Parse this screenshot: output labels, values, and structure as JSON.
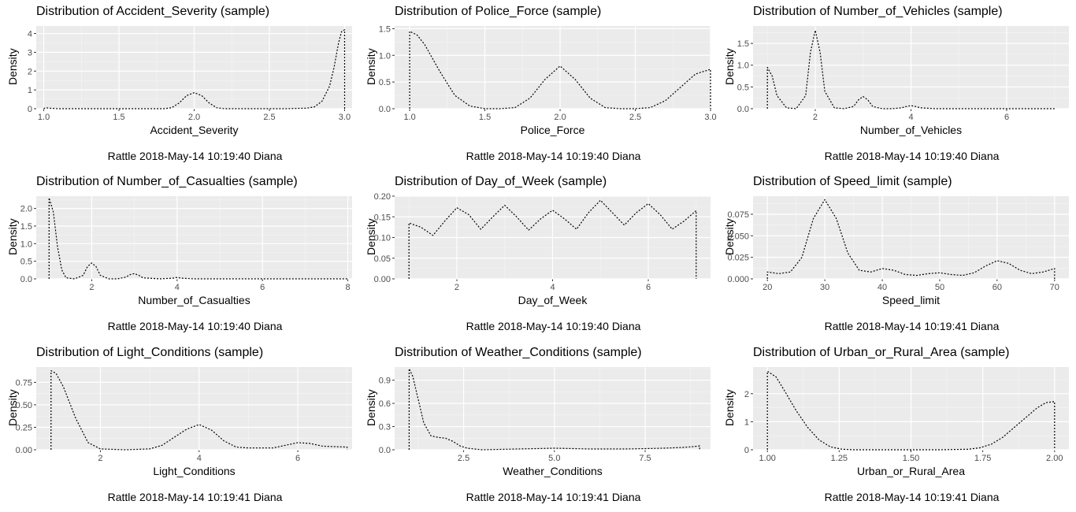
{
  "chart_data": [
    {
      "type": "line",
      "title": "Distribution of Accident_Severity (sample)",
      "xlabel": "Accident_Severity",
      "ylabel": "Density",
      "footer": "Rattle 2018-May-14 10:19:40 Diana",
      "xlim": [
        0.95,
        3.05
      ],
      "ylim": [
        0,
        4.4
      ],
      "xticks": [
        1.0,
        1.5,
        2.0,
        2.5,
        3.0
      ],
      "xtick_labels": [
        "1.0",
        "1.5",
        "2.0",
        "2.5",
        "3.0"
      ],
      "yticks": [
        0,
        1,
        2,
        3,
        4
      ],
      "ytick_labels": [
        "0",
        "1",
        "2",
        "3",
        "4"
      ],
      "grid": true,
      "line_style": "dotted",
      "series": [
        {
          "x": [
            1.0,
            1.01,
            1.05,
            1.1,
            1.2,
            1.4,
            1.6,
            1.8,
            1.85,
            1.9,
            1.95,
            2.0,
            2.05,
            2.1,
            2.15,
            2.2,
            2.4,
            2.6,
            2.75,
            2.8,
            2.85,
            2.9,
            2.93,
            2.96,
            2.98,
            3.0,
            3.0
          ],
          "y": [
            0,
            0.05,
            0.02,
            0,
            0,
            0,
            0,
            0,
            0.05,
            0.3,
            0.7,
            0.85,
            0.7,
            0.3,
            0.05,
            0,
            0,
            0,
            0.03,
            0.1,
            0.4,
            1.2,
            2.2,
            3.5,
            4.1,
            4.2,
            0
          ]
        }
      ]
    },
    {
      "type": "line",
      "title": "Distribution of Police_Force (sample)",
      "xlabel": "Police_Force",
      "ylabel": "Density",
      "footer": "Rattle 2018-May-14 10:19:40 Diana",
      "xlim": [
        0.9,
        3.0
      ],
      "ylim": [
        0,
        1.55
      ],
      "xticks": [
        1.0,
        1.5,
        2.0,
        2.5,
        3.0
      ],
      "xtick_labels": [
        "1.0",
        "1.5",
        "2.0",
        "2.5",
        "3.0"
      ],
      "yticks": [
        0,
        0.5,
        1.0,
        1.5
      ],
      "ytick_labels": [
        "0.0",
        "0.5",
        "1.0",
        "1.5"
      ],
      "grid": true,
      "line_style": "dotted",
      "series": [
        {
          "x": [
            1.0,
            1.0,
            1.05,
            1.1,
            1.2,
            1.3,
            1.4,
            1.5,
            1.6,
            1.7,
            1.8,
            1.9,
            2.0,
            2.1,
            2.2,
            2.3,
            2.4,
            2.5,
            2.6,
            2.7,
            2.8,
            2.9,
            3.0,
            3.0
          ],
          "y": [
            0,
            1.45,
            1.38,
            1.2,
            0.7,
            0.25,
            0.05,
            0,
            0,
            0.02,
            0.2,
            0.55,
            0.8,
            0.55,
            0.2,
            0.02,
            0,
            0,
            0.02,
            0.15,
            0.4,
            0.65,
            0.74,
            0
          ]
        }
      ]
    },
    {
      "type": "line",
      "title": "Distribution of Number_of_Vehicles (sample)",
      "xlabel": "Number_of_Vehicles",
      "ylabel": "Density",
      "footer": "Rattle 2018-May-14 10:19:40 Diana",
      "xlim": [
        0.7,
        7.3
      ],
      "ylim": [
        0,
        1.9
      ],
      "xticks": [
        2,
        4,
        6
      ],
      "xtick_labels": [
        "2",
        "4",
        "6"
      ],
      "yticks": [
        0,
        0.5,
        1.0,
        1.5
      ],
      "ytick_labels": [
        "0.0",
        "0.5",
        "1.0",
        "1.5"
      ],
      "grid": true,
      "line_style": "dotted",
      "series": [
        {
          "x": [
            1.0,
            1.0,
            1.1,
            1.2,
            1.4,
            1.6,
            1.8,
            1.9,
            2.0,
            2.1,
            2.2,
            2.4,
            2.6,
            2.8,
            2.9,
            3.0,
            3.1,
            3.2,
            3.4,
            3.6,
            3.8,
            3.9,
            4.0,
            4.1,
            4.2,
            4.5,
            5,
            6,
            7,
            7.0
          ],
          "y": [
            0,
            0.95,
            0.75,
            0.3,
            0.02,
            0,
            0.3,
            1.3,
            1.8,
            1.3,
            0.4,
            0.02,
            0,
            0.05,
            0.2,
            0.28,
            0.2,
            0.05,
            0,
            0,
            0.02,
            0.05,
            0.07,
            0.05,
            0.02,
            0,
            0,
            0,
            0,
            0
          ]
        }
      ]
    },
    {
      "type": "line",
      "title": "Distribution of Number_of_Casualties (sample)",
      "xlabel": "Number_of_Casualties",
      "ylabel": "Density",
      "footer": "Rattle 2018-May-14 10:19:40 Diana",
      "xlim": [
        0.7,
        8.1
      ],
      "ylim": [
        0,
        2.35
      ],
      "xticks": [
        2,
        4,
        6,
        8
      ],
      "xtick_labels": [
        "2",
        "4",
        "6",
        "8"
      ],
      "yticks": [
        0,
        0.5,
        1.0,
        1.5,
        2.0
      ],
      "ytick_labels": [
        "0.0",
        "0.5",
        "1.0",
        "1.5",
        "2.0"
      ],
      "grid": true,
      "line_style": "dotted",
      "series": [
        {
          "x": [
            1.0,
            1.0,
            1.1,
            1.2,
            1.3,
            1.4,
            1.6,
            1.8,
            1.9,
            2.0,
            2.1,
            2.2,
            2.4,
            2.6,
            2.8,
            2.9,
            3.0,
            3.1,
            3.2,
            3.6,
            3.9,
            4.0,
            4.1,
            4.4,
            5,
            6,
            7,
            8,
            8.0
          ],
          "y": [
            0,
            2.3,
            1.9,
            0.9,
            0.25,
            0.03,
            0,
            0.1,
            0.35,
            0.45,
            0.35,
            0.1,
            0,
            0,
            0.05,
            0.12,
            0.15,
            0.1,
            0.03,
            0,
            0.02,
            0.04,
            0.02,
            0,
            0,
            0,
            0,
            0,
            0
          ]
        }
      ]
    },
    {
      "type": "line",
      "title": "Distribution of Day_of_Week (sample)",
      "xlabel": "Day_of_Week",
      "ylabel": "Density",
      "footer": "Rattle 2018-May-14 10:19:40 Diana",
      "xlim": [
        0.7,
        7.3
      ],
      "ylim": [
        0,
        0.2
      ],
      "xticks": [
        2,
        4,
        6
      ],
      "xtick_labels": [
        "2",
        "4",
        "6"
      ],
      "yticks": [
        0,
        0.05,
        0.1,
        0.15,
        0.2
      ],
      "ytick_labels": [
        "0.00",
        "0.05",
        "0.10",
        "0.15",
        "0.20"
      ],
      "grid": true,
      "line_style": "dotted",
      "series": [
        {
          "x": [
            1.0,
            1.0,
            1.25,
            1.5,
            1.75,
            2.0,
            2.25,
            2.5,
            2.75,
            3.0,
            3.25,
            3.5,
            3.75,
            4.0,
            4.25,
            4.5,
            4.75,
            5.0,
            5.25,
            5.5,
            5.75,
            6.0,
            6.25,
            6.5,
            6.75,
            7.0,
            7.0
          ],
          "y": [
            0,
            0.135,
            0.125,
            0.105,
            0.14,
            0.172,
            0.155,
            0.12,
            0.15,
            0.178,
            0.15,
            0.118,
            0.145,
            0.166,
            0.145,
            0.12,
            0.16,
            0.19,
            0.16,
            0.13,
            0.16,
            0.182,
            0.155,
            0.12,
            0.14,
            0.165,
            0
          ]
        }
      ]
    },
    {
      "type": "line",
      "title": "Distribution of Speed_limit (sample)",
      "xlabel": "Speed_limit",
      "ylabel": "Density",
      "footer": "Rattle 2018-May-14 10:19:41 Diana",
      "xlim": [
        17.5,
        72.5
      ],
      "ylim": [
        0,
        0.096
      ],
      "xticks": [
        20,
        30,
        40,
        50,
        60,
        70
      ],
      "xtick_labels": [
        "20",
        "30",
        "40",
        "50",
        "60",
        "70"
      ],
      "yticks": [
        0,
        0.025,
        0.05,
        0.075
      ],
      "ytick_labels": [
        "0.000",
        "0.025",
        "0.050",
        "0.075"
      ],
      "grid": true,
      "line_style": "dotted",
      "series": [
        {
          "x": [
            20,
            20,
            22,
            24,
            26,
            28,
            30,
            32,
            34,
            36,
            38,
            40,
            42,
            44,
            46,
            48,
            50,
            52,
            54,
            56,
            58,
            60,
            62,
            64,
            66,
            68,
            70,
            70
          ],
          "y": [
            0,
            0.008,
            0.006,
            0.008,
            0.025,
            0.07,
            0.092,
            0.07,
            0.03,
            0.01,
            0.008,
            0.012,
            0.01,
            0.005,
            0.004,
            0.006,
            0.007,
            0.005,
            0.004,
            0.007,
            0.015,
            0.021,
            0.018,
            0.01,
            0.006,
            0.008,
            0.012,
            0
          ]
        }
      ]
    },
    {
      "type": "line",
      "title": "Distribution of Light_Conditions (sample)",
      "xlabel": "Light_Conditions",
      "ylabel": "Density",
      "footer": "Rattle 2018-May-14 10:19:41 Diana",
      "xlim": [
        0.7,
        7.1
      ],
      "ylim": [
        0,
        0.92
      ],
      "xticks": [
        2,
        4,
        6
      ],
      "xtick_labels": [
        "2",
        "4",
        "6"
      ],
      "yticks": [
        0,
        0.25,
        0.5,
        0.75
      ],
      "ytick_labels": [
        "0.00",
        "0.25",
        "0.50",
        "0.75"
      ],
      "grid": true,
      "line_style": "dotted",
      "series": [
        {
          "x": [
            1.0,
            1.0,
            1.1,
            1.25,
            1.5,
            1.75,
            2.0,
            2.5,
            3.0,
            3.25,
            3.5,
            3.75,
            4.0,
            4.25,
            4.5,
            4.75,
            5.0,
            5.5,
            5.75,
            6.0,
            6.25,
            6.5,
            7.0,
            7.0
          ],
          "y": [
            0,
            0.88,
            0.85,
            0.7,
            0.35,
            0.08,
            0.01,
            0,
            0.01,
            0.05,
            0.14,
            0.23,
            0.28,
            0.22,
            0.1,
            0.03,
            0.02,
            0.02,
            0.05,
            0.08,
            0.07,
            0.04,
            0.03,
            0
          ]
        }
      ]
    },
    {
      "type": "line",
      "title": "Distribution of Weather_Conditions (sample)",
      "xlabel": "Weather_Conditions",
      "ylabel": "Density",
      "footer": "Rattle 2018-May-14 10:19:41 Diana",
      "xlim": [
        0.6,
        9.3
      ],
      "ylim": [
        0,
        1.07
      ],
      "xticks": [
        2.5,
        5.0,
        7.5
      ],
      "xtick_labels": [
        "2.5",
        "5.0",
        "7.5"
      ],
      "yticks": [
        0,
        0.3,
        0.6,
        0.9
      ],
      "ytick_labels": [
        "0.0",
        "0.3",
        "0.6",
        "0.9"
      ],
      "grid": true,
      "line_style": "dotted",
      "series": [
        {
          "x": [
            1.0,
            1.0,
            1.1,
            1.25,
            1.4,
            1.6,
            1.8,
            2.0,
            2.2,
            2.4,
            2.6,
            3.0,
            4,
            5,
            6,
            7,
            8,
            8.5,
            8.8,
            9.0,
            9.0
          ],
          "y": [
            0,
            1.05,
            0.95,
            0.65,
            0.35,
            0.18,
            0.16,
            0.15,
            0.11,
            0.05,
            0.02,
            0,
            0.01,
            0.02,
            0.01,
            0.01,
            0.02,
            0.03,
            0.04,
            0.05,
            0
          ]
        }
      ]
    },
    {
      "type": "line",
      "title": "Distribution of Urban_or_Rural_Area (sample)",
      "xlabel": "Urban_or_Rural_Area",
      "ylabel": "Density",
      "footer": "Rattle 2018-May-14 10:19:41 Diana",
      "xlim": [
        0.95,
        2.05
      ],
      "ylim": [
        0,
        2.95
      ],
      "xticks": [
        1.0,
        1.25,
        1.5,
        1.75,
        2.0
      ],
      "xtick_labels": [
        "1.00",
        "1.25",
        "1.50",
        "1.75",
        "2.00"
      ],
      "yticks": [
        0,
        1,
        2
      ],
      "ytick_labels": [
        "0",
        "1",
        "2"
      ],
      "grid": true,
      "line_style": "dotted",
      "series": [
        {
          "x": [
            1.0,
            1.0,
            1.03,
            1.06,
            1.1,
            1.14,
            1.18,
            1.22,
            1.26,
            1.3,
            1.4,
            1.6,
            1.7,
            1.74,
            1.78,
            1.82,
            1.86,
            1.9,
            1.94,
            1.97,
            2.0,
            2.0
          ],
          "y": [
            0,
            2.8,
            2.6,
            2.1,
            1.4,
            0.8,
            0.35,
            0.1,
            0.02,
            0,
            0,
            0,
            0.02,
            0.07,
            0.2,
            0.45,
            0.8,
            1.15,
            1.5,
            1.68,
            1.72,
            0
          ]
        }
      ]
    }
  ]
}
